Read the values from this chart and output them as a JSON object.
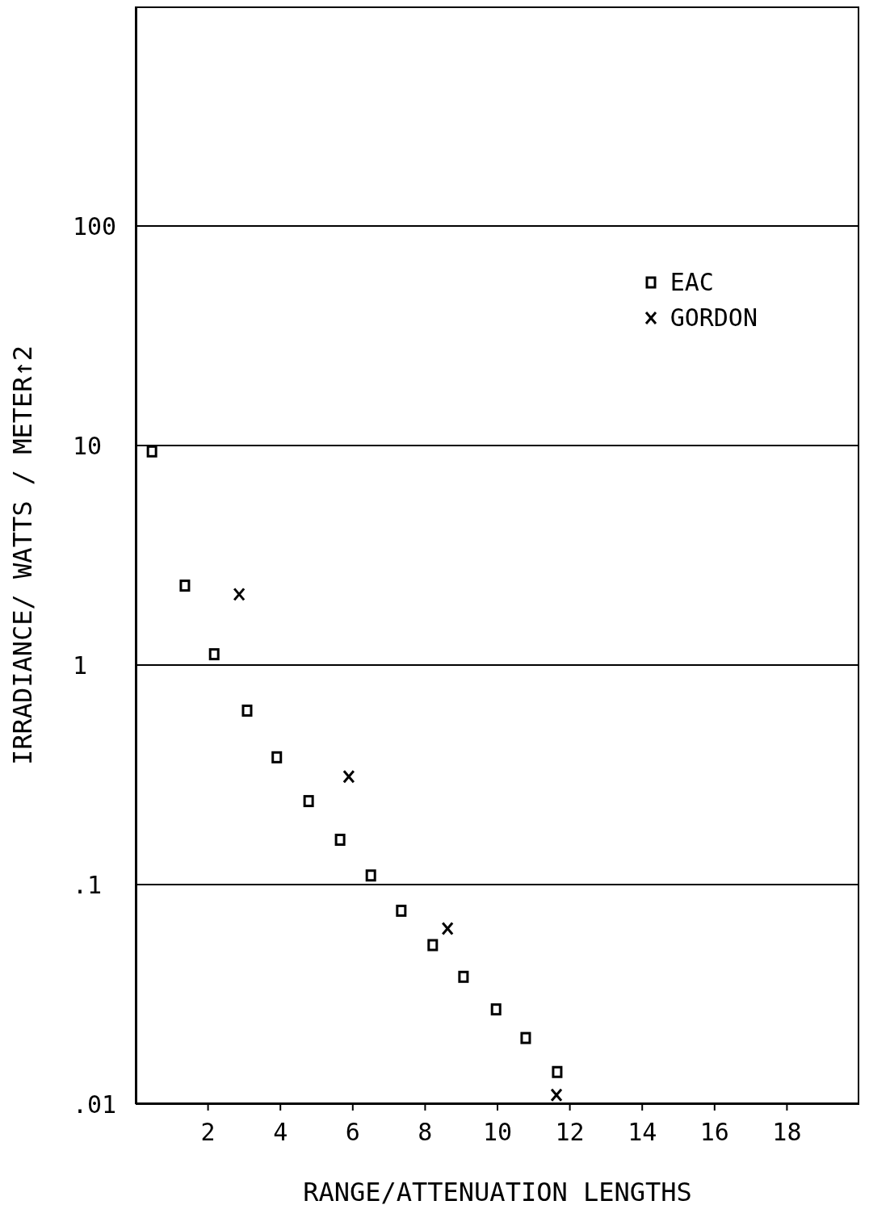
{
  "chart_data": {
    "type": "scatter",
    "xlabel": "RANGE/ATTENUATION LENGTHS",
    "ylabel": "IRRADIANCE/ WATTS / METER↑2",
    "xlim": [
      0,
      20
    ],
    "xticks": [
      2,
      4,
      6,
      8,
      10,
      12,
      14,
      16,
      18
    ],
    "ylim": [
      0.01,
      1000
    ],
    "yticks": [
      {
        "value": 0.01,
        "label": ".01"
      },
      {
        "value": 0.1,
        "label": ".1"
      },
      {
        "value": 1,
        "label": "1"
      },
      {
        "value": 10,
        "label": "10"
      },
      {
        "value": 100,
        "label": "100"
      }
    ],
    "log": "y",
    "grid": "y",
    "legend": "top right",
    "series": [
      {
        "name": "EAC",
        "color": "#000000",
        "marker": "square",
        "x": [
          0.45,
          1.36,
          2.17,
          3.08,
          3.9,
          4.78,
          5.65,
          6.5,
          7.34,
          8.21,
          9.06,
          9.96,
          10.78,
          11.65
        ],
        "values": [
          9.4,
          2.3,
          1.12,
          0.62,
          0.38,
          0.24,
          0.16,
          0.11,
          0.076,
          0.053,
          0.038,
          0.027,
          0.02,
          0.014
        ]
      },
      {
        "name": "GORDON",
        "color": "#000000",
        "marker": "cross",
        "x": [
          2.86,
          5.89,
          8.62,
          11.63
        ],
        "values": [
          2.1,
          0.31,
          0.063,
          0.011
        ]
      }
    ]
  }
}
